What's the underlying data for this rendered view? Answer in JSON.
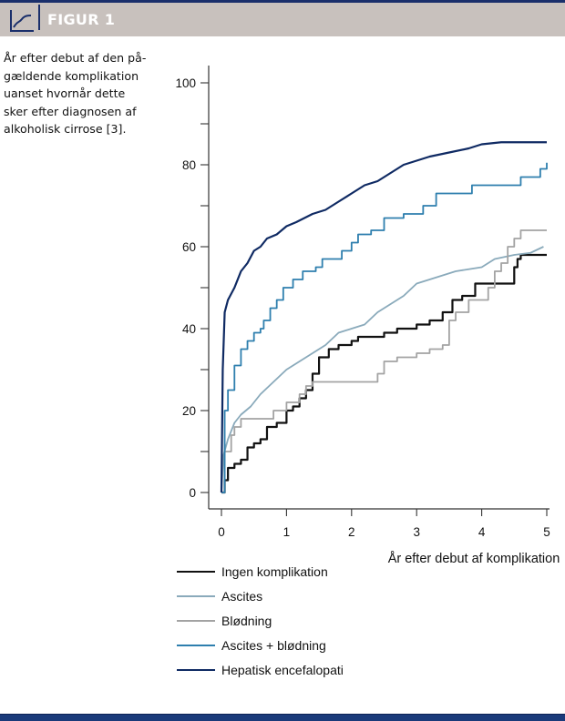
{
  "header": {
    "title": "FIGUR 1",
    "icon": "line-chart-icon"
  },
  "caption": "År efter debut af den på-gældende komplikation uanset hvornår dette sker efter diagnosen af alkoholisk cirrose [3].",
  "caption_lines": [
    "År efter debut af den på-",
    "gældende komplikation",
    "uanset hvornår dette",
    "sker efter diagnosen af",
    "alkoholisk cirrose [3]."
  ],
  "colors": {
    "header_bg": "#c8c1bd",
    "accent": "#1a2f6b",
    "ingen": "#111111",
    "ascites": "#8aaabb",
    "blodning": "#a3a3a3",
    "ascites_blodning": "#2e7fae",
    "hepatisk": "#0f2a63"
  },
  "chart_data": {
    "type": "line",
    "title": "",
    "xlabel": "År efter debut af komplikation",
    "ylabel": "",
    "xlim": [
      0,
      5
    ],
    "ylim": [
      0,
      100
    ],
    "xticks": [
      0,
      1,
      2,
      3,
      4,
      5
    ],
    "yticks": [
      0,
      20,
      40,
      60,
      80,
      100
    ],
    "yminor": [
      10,
      30,
      50,
      70,
      90
    ],
    "grid": false,
    "legend_position": "bottom-left",
    "series": [
      {
        "name": "Ingen komplikation",
        "color": "#111111",
        "step": true,
        "points": [
          [
            0,
            0
          ],
          [
            0.05,
            3
          ],
          [
            0.1,
            6
          ],
          [
            0.2,
            7
          ],
          [
            0.3,
            8
          ],
          [
            0.4,
            11
          ],
          [
            0.5,
            12
          ],
          [
            0.6,
            13
          ],
          [
            0.7,
            16
          ],
          [
            0.85,
            17
          ],
          [
            1.0,
            20
          ],
          [
            1.1,
            21
          ],
          [
            1.2,
            23
          ],
          [
            1.3,
            25
          ],
          [
            1.4,
            29
          ],
          [
            1.5,
            33
          ],
          [
            1.65,
            35
          ],
          [
            1.8,
            36
          ],
          [
            2.0,
            37
          ],
          [
            2.1,
            38
          ],
          [
            2.3,
            38
          ],
          [
            2.5,
            39
          ],
          [
            2.7,
            40
          ],
          [
            3.0,
            41
          ],
          [
            3.2,
            42
          ],
          [
            3.4,
            44
          ],
          [
            3.55,
            47
          ],
          [
            3.7,
            48
          ],
          [
            3.9,
            51
          ],
          [
            4.4,
            51
          ],
          [
            4.5,
            55
          ],
          [
            4.55,
            57
          ],
          [
            4.6,
            58
          ],
          [
            5.0,
            58
          ]
        ]
      },
      {
        "name": "Ascites",
        "color": "#8aaabb",
        "step": false,
        "points": [
          [
            0,
            0
          ],
          [
            0.03,
            9
          ],
          [
            0.1,
            13
          ],
          [
            0.2,
            17
          ],
          [
            0.3,
            19
          ],
          [
            0.45,
            21
          ],
          [
            0.6,
            24
          ],
          [
            0.8,
            27
          ],
          [
            1.0,
            30
          ],
          [
            1.2,
            32
          ],
          [
            1.4,
            34
          ],
          [
            1.6,
            36
          ],
          [
            1.8,
            39
          ],
          [
            2.0,
            40
          ],
          [
            2.2,
            41
          ],
          [
            2.4,
            44
          ],
          [
            2.6,
            46
          ],
          [
            2.8,
            48
          ],
          [
            3.0,
            51
          ],
          [
            3.2,
            52
          ],
          [
            3.4,
            53
          ],
          [
            3.6,
            54
          ],
          [
            3.8,
            54.5
          ],
          [
            4.0,
            55
          ],
          [
            4.2,
            57
          ],
          [
            4.5,
            58
          ],
          [
            4.75,
            58.5
          ],
          [
            4.95,
            60
          ]
        ]
      },
      {
        "name": "Blødning",
        "color": "#a3a3a3",
        "step": true,
        "points": [
          [
            0,
            0
          ],
          [
            0.05,
            10
          ],
          [
            0.15,
            14
          ],
          [
            0.2,
            16
          ],
          [
            0.3,
            18
          ],
          [
            0.8,
            20
          ],
          [
            1.0,
            22
          ],
          [
            1.2,
            24
          ],
          [
            1.3,
            26
          ],
          [
            1.4,
            27
          ],
          [
            2.4,
            29
          ],
          [
            2.5,
            32
          ],
          [
            2.7,
            33
          ],
          [
            3.0,
            34
          ],
          [
            3.2,
            35
          ],
          [
            3.4,
            36
          ],
          [
            3.5,
            42
          ],
          [
            3.6,
            44
          ],
          [
            3.8,
            47
          ],
          [
            4.1,
            50
          ],
          [
            4.2,
            54
          ],
          [
            4.3,
            56
          ],
          [
            4.4,
            60
          ],
          [
            4.5,
            62
          ],
          [
            4.6,
            64
          ],
          [
            5.0,
            64
          ]
        ]
      },
      {
        "name": "Ascites + blødning",
        "color": "#2e7fae",
        "step": true,
        "points": [
          [
            0,
            0
          ],
          [
            0.05,
            20
          ],
          [
            0.1,
            25
          ],
          [
            0.2,
            31
          ],
          [
            0.3,
            35
          ],
          [
            0.4,
            37
          ],
          [
            0.5,
            39
          ],
          [
            0.6,
            40
          ],
          [
            0.65,
            42
          ],
          [
            0.75,
            45
          ],
          [
            0.85,
            47
          ],
          [
            0.95,
            50
          ],
          [
            1.1,
            52
          ],
          [
            1.25,
            54
          ],
          [
            1.45,
            55
          ],
          [
            1.55,
            57
          ],
          [
            1.85,
            59
          ],
          [
            2.0,
            61
          ],
          [
            2.1,
            63
          ],
          [
            2.3,
            64
          ],
          [
            2.5,
            67
          ],
          [
            2.8,
            68
          ],
          [
            3.1,
            70
          ],
          [
            3.3,
            73
          ],
          [
            3.7,
            73
          ],
          [
            3.85,
            75
          ],
          [
            4.6,
            77
          ],
          [
            4.9,
            79
          ],
          [
            5.0,
            80.5
          ]
        ]
      },
      {
        "name": "Hepatisk encefalopati",
        "color": "#0f2a63",
        "step": false,
        "points": [
          [
            0,
            0
          ],
          [
            0.02,
            30
          ],
          [
            0.05,
            44
          ],
          [
            0.1,
            47
          ],
          [
            0.2,
            50
          ],
          [
            0.3,
            54
          ],
          [
            0.4,
            56
          ],
          [
            0.5,
            59
          ],
          [
            0.6,
            60
          ],
          [
            0.7,
            62
          ],
          [
            0.85,
            63
          ],
          [
            1.0,
            65
          ],
          [
            1.15,
            66
          ],
          [
            1.4,
            68
          ],
          [
            1.6,
            69
          ],
          [
            1.8,
            71
          ],
          [
            2.0,
            73
          ],
          [
            2.2,
            75
          ],
          [
            2.4,
            76
          ],
          [
            2.6,
            78
          ],
          [
            2.8,
            80
          ],
          [
            3.0,
            81
          ],
          [
            3.2,
            82
          ],
          [
            3.5,
            83
          ],
          [
            3.8,
            84
          ],
          [
            4.0,
            85
          ],
          [
            4.3,
            85.5
          ],
          [
            5.0,
            85.5
          ]
        ]
      }
    ]
  }
}
